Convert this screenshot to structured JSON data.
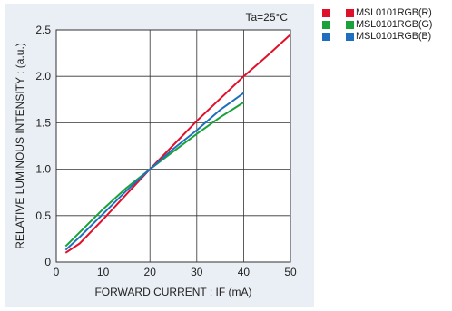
{
  "chart_data": {
    "type": "line",
    "title": "",
    "annotation": "Ta=25°C",
    "xlabel": "FORWARD CURRENT : IF  (mA)",
    "ylabel": "RELATIVE LUMINOUS INTENSITY :  (a.u.)",
    "xlim": [
      0,
      50
    ],
    "ylim": [
      0,
      2.5
    ],
    "xticks": [
      0,
      10,
      20,
      30,
      40,
      50
    ],
    "yticks": [
      0,
      0.5,
      1.0,
      1.5,
      2.0,
      2.5
    ],
    "xtick_labels": [
      "0",
      "10",
      "20",
      "30",
      "40",
      "50"
    ],
    "ytick_labels": [
      "0",
      "0.5",
      "1.0",
      "1.5",
      "2.0",
      "2.5"
    ],
    "grid": true,
    "legend_position": "right",
    "series": [
      {
        "name": "MSL0101RGB(R)",
        "color": "#e0102a",
        "x": [
          2,
          5,
          10,
          15,
          20,
          25,
          30,
          35,
          40,
          45,
          50
        ],
        "y": [
          0.1,
          0.2,
          0.46,
          0.73,
          1.0,
          1.26,
          1.52,
          1.76,
          2.0,
          2.22,
          2.45
        ]
      },
      {
        "name": "MSL0101RGB(G)",
        "color": "#1aa23a",
        "x": [
          2,
          5,
          10,
          15,
          20,
          25,
          30,
          35,
          40
        ],
        "y": [
          0.17,
          0.32,
          0.57,
          0.8,
          1.0,
          1.19,
          1.38,
          1.56,
          1.72
        ]
      },
      {
        "name": "MSL0101RGB(B)",
        "color": "#1f6fbf",
        "x": [
          2,
          5,
          10,
          15,
          20,
          25,
          30,
          35,
          40
        ],
        "y": [
          0.13,
          0.27,
          0.52,
          0.77,
          1.0,
          1.22,
          1.42,
          1.64,
          1.82
        ]
      }
    ]
  }
}
